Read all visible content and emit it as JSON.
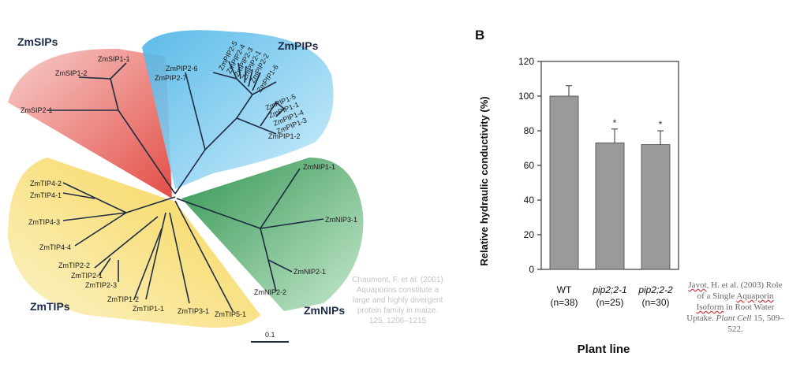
{
  "tree": {
    "groups": [
      "ZmSIPs",
      "ZmPIPs",
      "ZmTIPs",
      "ZmNIPs"
    ],
    "scale_label": "0.1",
    "leaves": {
      "sip": [
        "ZmSIP1-1",
        "ZmSIP1-2",
        "ZmSIP2-1"
      ],
      "pip": [
        "ZmPIP2-6",
        "ZmPIP2-7",
        "ZmPIP2-5",
        "ZmPIP2-4",
        "ZmPIP2-3",
        "ZmPIP2-1",
        "ZmPIP2-2",
        "ZmPIP1-6",
        "ZmPIP1-5",
        "ZmPIP1-1",
        "ZmPIP1-4",
        "ZmPIP1-3",
        "ZmPIP1-2"
      ],
      "nip": [
        "ZmNIP1-1",
        "ZmNIP3-1",
        "ZmNIP2-1",
        "ZmNIP2-2"
      ],
      "tip": [
        "ZmTIP4-2",
        "ZmTIP4-1",
        "ZmTIP4-3",
        "ZmTIP4-4",
        "ZmTIP2-2",
        "ZmTIP2-1",
        "ZmTIP2-3",
        "ZmTIP1-2",
        "ZmTIP1-1",
        "ZmTIP3-1",
        "ZmTIP5-1"
      ]
    },
    "colors": {
      "sip": "#e8473f",
      "pip": "#3fb1e8",
      "nip": "#2e9a4c",
      "tip": "#f5d24a"
    }
  },
  "citation_left": "Chaumont, F. et al. (2001) Aquaporins constitute a large and highly divergent protein family in maize. 125, 1206–1215",
  "citation_right": {
    "author": "Javot",
    "rest": ", H. et al. (2003) Role of a Single ",
    "title_underlined": "Aquaporin Isoform",
    "title_rest": " in Root Water Uptake. ",
    "journal": "Plant Cell",
    "pages": " 15, 509–522."
  },
  "chart_data": {
    "type": "bar",
    "panel_label": "B",
    "categories": [
      "WT",
      "pip2;2-1",
      "pip2;2-2"
    ],
    "category_sublabels": [
      "(n=38)",
      "(n=25)",
      "(n=30)"
    ],
    "values": [
      100,
      73,
      72
    ],
    "errors": [
      6,
      8,
      8
    ],
    "significance": [
      "",
      "*",
      "*"
    ],
    "ylabel": "Relative hydraulic conductivity (%)",
    "xlabel": "Plant line",
    "ylim": [
      0,
      120
    ],
    "yticks": [
      0,
      20,
      40,
      60,
      80,
      100,
      120
    ],
    "bar_color": "#9a9a9a"
  }
}
